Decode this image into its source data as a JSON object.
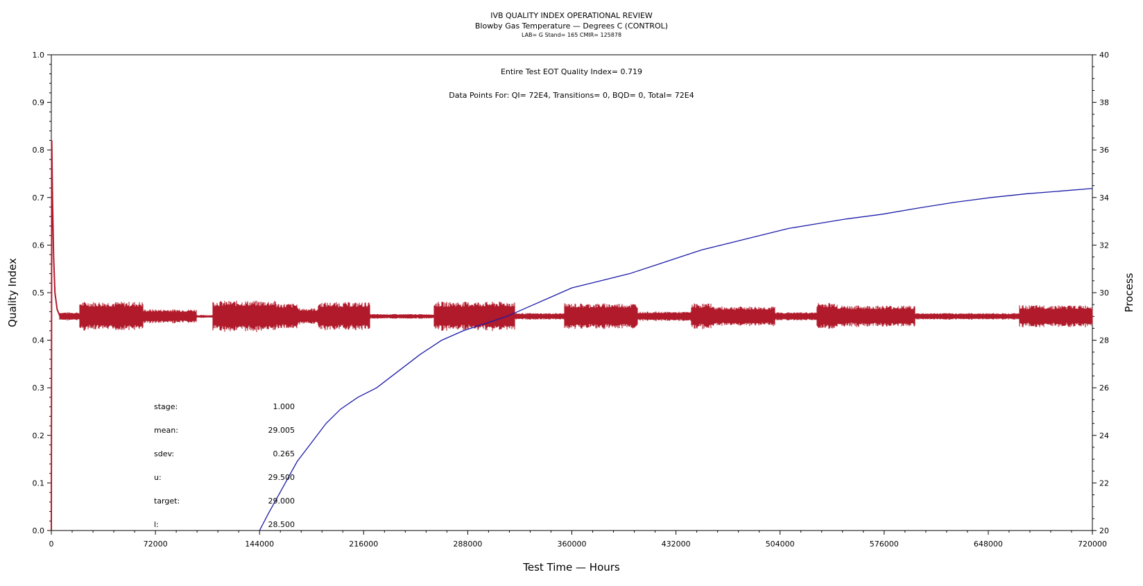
{
  "chart_data": {
    "type": "line",
    "title": "IVB QUALITY INDEX OPERATIONAL REVIEW",
    "subtitle": "Blowby Gas Temperature — Degrees C (CONTROL)",
    "subtitle2": "LAB= G Stand= 165 CMIR= 125878",
    "xlabel": "Test Time — Hours",
    "ylabel_left": "Quality Index",
    "ylabel_right": "Process",
    "xlim": [
      0,
      720000
    ],
    "ylim_left": [
      0.0,
      1.0
    ],
    "ylim_right": [
      20,
      40
    ],
    "x_ticks": [
      "0",
      "72000",
      "144000",
      "216000",
      "288000",
      "360000",
      "432000",
      "504000",
      "576000",
      "648000",
      "720000"
    ],
    "y_ticks_left": [
      "0.0",
      "0.1",
      "0.2",
      "0.3",
      "0.4",
      "0.5",
      "0.6",
      "0.7",
      "0.8",
      "0.9",
      "1.0"
    ],
    "y_ticks_right": [
      "20",
      "22",
      "24",
      "26",
      "28",
      "30",
      "32",
      "34",
      "36",
      "38",
      "40"
    ],
    "annotation_eot": "Entire Test EOT Quality Index=   0.719",
    "annotation_points": "Data Points For: QI=  72E4, Transitions=      0, BQD=      0, Total=  72E4",
    "series": [
      {
        "axis": "left",
        "color": "#1a1aa8",
        "x": [
          144000,
          150000,
          160000,
          170000,
          180000,
          190000,
          200000,
          212000,
          225000,
          240000,
          255000,
          270000,
          285000,
          300000,
          315000,
          330000,
          345000,
          360000,
          380000,
          400000,
          420000,
          435000,
          450000,
          470000,
          490000,
          510000,
          530000,
          550000,
          575000,
          600000,
          625000,
          650000,
          675000,
          700000,
          720000
        ],
        "y": [
          0.0,
          0.035,
          0.09,
          0.145,
          0.185,
          0.225,
          0.255,
          0.28,
          0.3,
          0.335,
          0.37,
          0.4,
          0.42,
          0.435,
          0.45,
          0.47,
          0.49,
          0.51,
          0.525,
          0.54,
          0.56,
          0.575,
          0.59,
          0.605,
          0.62,
          0.635,
          0.645,
          0.655,
          0.665,
          0.678,
          0.69,
          0.7,
          0.708,
          0.714,
          0.719
        ]
      },
      {
        "axis": "right",
        "color": "#b01a2a",
        "center": 29.0,
        "spike": [
          [
            0,
            20.0
          ],
          [
            300,
            36.4
          ],
          [
            800,
            34.0
          ],
          [
            1600,
            31.5
          ],
          [
            2500,
            30.0
          ],
          [
            4000,
            29.3
          ],
          [
            6000,
            29.0
          ]
        ],
        "segments": [
          [
            6000,
            20000,
            0.18
          ],
          [
            20000,
            63000,
            0.62
          ],
          [
            63000,
            100000,
            0.3
          ],
          [
            100000,
            112000,
            0.06
          ],
          [
            112000,
            155000,
            0.66
          ],
          [
            155000,
            170000,
            0.55
          ],
          [
            170000,
            185000,
            0.35
          ],
          [
            185000,
            220000,
            0.6
          ],
          [
            220000,
            265000,
            0.1
          ],
          [
            265000,
            320000,
            0.62
          ],
          [
            320000,
            355000,
            0.14
          ],
          [
            355000,
            405000,
            0.55
          ],
          [
            405000,
            443000,
            0.2
          ],
          [
            443000,
            457000,
            0.55
          ],
          [
            457000,
            500000,
            0.42
          ],
          [
            500000,
            530000,
            0.18
          ],
          [
            530000,
            543000,
            0.58
          ],
          [
            543000,
            597000,
            0.46
          ],
          [
            597000,
            670000,
            0.14
          ],
          [
            670000,
            720000,
            0.47
          ]
        ]
      }
    ],
    "stats": [
      {
        "label": "stage:",
        "value": "1.000"
      },
      {
        "label": "mean:",
        "value": "29.005"
      },
      {
        "label": "sdev:",
        "value": "0.265"
      },
      {
        "label": "u:",
        "value": "29.500"
      },
      {
        "label": "target:",
        "value": "29.000"
      },
      {
        "label": "l:",
        "value": "28.500"
      }
    ]
  }
}
